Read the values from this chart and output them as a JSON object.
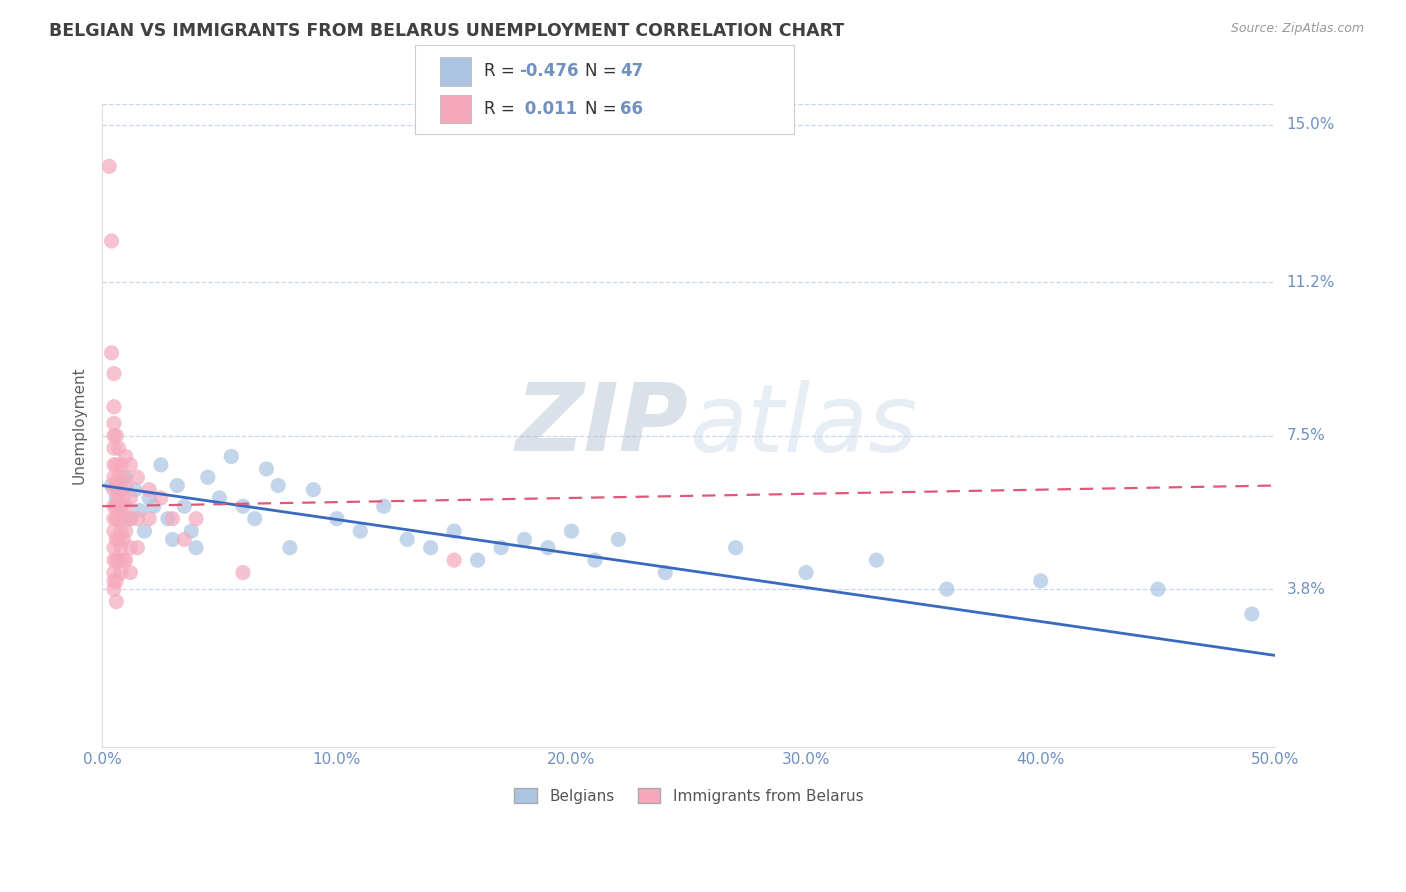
{
  "title": "BELGIAN VS IMMIGRANTS FROM BELARUS UNEMPLOYMENT CORRELATION CHART",
  "source": "Source: ZipAtlas.com",
  "ylabel": "Unemployment",
  "xlim": [
    0.0,
    0.5
  ],
  "ylim": [
    0.0,
    0.155
  ],
  "yticks": [
    0.038,
    0.075,
    0.112,
    0.15
  ],
  "ytick_labels": [
    "3.8%",
    "7.5%",
    "11.2%",
    "15.0%"
  ],
  "xticks": [
    0.0,
    0.1,
    0.2,
    0.3,
    0.4,
    0.5
  ],
  "xtick_labels": [
    "0.0%",
    "10.0%",
    "20.0%",
    "30.0%",
    "40.0%",
    "50.0%"
  ],
  "belgians_color": "#aac4e2",
  "belarus_color": "#f5a8bc",
  "trend_belgian_color": "#3a6abf",
  "trend_belarus_color": "#e05878",
  "R_belgian": -0.476,
  "N_belgian": 47,
  "R_belarus": 0.011,
  "N_belarus": 66,
  "watermark_zip": "ZIP",
  "watermark_atlas": "atlas",
  "title_color": "#404040",
  "axis_label_color": "#7090c0",
  "grid_color": "#c8d8ea",
  "belgians_scatter": [
    [
      0.004,
      0.063
    ],
    [
      0.006,
      0.06
    ],
    [
      0.008,
      0.058
    ],
    [
      0.01,
      0.065
    ],
    [
      0.012,
      0.055
    ],
    [
      0.014,
      0.062
    ],
    [
      0.016,
      0.057
    ],
    [
      0.018,
      0.052
    ],
    [
      0.02,
      0.06
    ],
    [
      0.022,
      0.058
    ],
    [
      0.025,
      0.068
    ],
    [
      0.028,
      0.055
    ],
    [
      0.03,
      0.05
    ],
    [
      0.032,
      0.063
    ],
    [
      0.035,
      0.058
    ],
    [
      0.038,
      0.052
    ],
    [
      0.04,
      0.048
    ],
    [
      0.045,
      0.065
    ],
    [
      0.05,
      0.06
    ],
    [
      0.055,
      0.07
    ],
    [
      0.06,
      0.058
    ],
    [
      0.065,
      0.055
    ],
    [
      0.07,
      0.067
    ],
    [
      0.075,
      0.063
    ],
    [
      0.08,
      0.048
    ],
    [
      0.09,
      0.062
    ],
    [
      0.1,
      0.055
    ],
    [
      0.11,
      0.052
    ],
    [
      0.12,
      0.058
    ],
    [
      0.13,
      0.05
    ],
    [
      0.14,
      0.048
    ],
    [
      0.15,
      0.052
    ],
    [
      0.16,
      0.045
    ],
    [
      0.17,
      0.048
    ],
    [
      0.18,
      0.05
    ],
    [
      0.19,
      0.048
    ],
    [
      0.2,
      0.052
    ],
    [
      0.21,
      0.045
    ],
    [
      0.22,
      0.05
    ],
    [
      0.24,
      0.042
    ],
    [
      0.27,
      0.048
    ],
    [
      0.3,
      0.042
    ],
    [
      0.33,
      0.045
    ],
    [
      0.36,
      0.038
    ],
    [
      0.4,
      0.04
    ],
    [
      0.45,
      0.038
    ],
    [
      0.49,
      0.032
    ]
  ],
  "belarus_scatter": [
    [
      0.003,
      0.14
    ],
    [
      0.004,
      0.122
    ],
    [
      0.004,
      0.095
    ],
    [
      0.005,
      0.09
    ],
    [
      0.005,
      0.082
    ],
    [
      0.005,
      0.078
    ],
    [
      0.005,
      0.075
    ],
    [
      0.005,
      0.072
    ],
    [
      0.005,
      0.068
    ],
    [
      0.005,
      0.065
    ],
    [
      0.005,
      0.062
    ],
    [
      0.005,
      0.058
    ],
    [
      0.005,
      0.055
    ],
    [
      0.005,
      0.052
    ],
    [
      0.005,
      0.048
    ],
    [
      0.005,
      0.045
    ],
    [
      0.005,
      0.042
    ],
    [
      0.005,
      0.04
    ],
    [
      0.005,
      0.038
    ],
    [
      0.006,
      0.075
    ],
    [
      0.006,
      0.068
    ],
    [
      0.006,
      0.063
    ],
    [
      0.006,
      0.058
    ],
    [
      0.006,
      0.055
    ],
    [
      0.006,
      0.05
    ],
    [
      0.006,
      0.045
    ],
    [
      0.006,
      0.04
    ],
    [
      0.006,
      0.035
    ],
    [
      0.007,
      0.072
    ],
    [
      0.007,
      0.065
    ],
    [
      0.007,
      0.06
    ],
    [
      0.007,
      0.055
    ],
    [
      0.007,
      0.05
    ],
    [
      0.007,
      0.045
    ],
    [
      0.008,
      0.068
    ],
    [
      0.008,
      0.062
    ],
    [
      0.008,
      0.058
    ],
    [
      0.008,
      0.052
    ],
    [
      0.008,
      0.048
    ],
    [
      0.008,
      0.042
    ],
    [
      0.009,
      0.065
    ],
    [
      0.009,
      0.06
    ],
    [
      0.009,
      0.055
    ],
    [
      0.009,
      0.05
    ],
    [
      0.009,
      0.045
    ],
    [
      0.01,
      0.07
    ],
    [
      0.01,
      0.063
    ],
    [
      0.01,
      0.058
    ],
    [
      0.01,
      0.052
    ],
    [
      0.01,
      0.045
    ],
    [
      0.012,
      0.068
    ],
    [
      0.012,
      0.06
    ],
    [
      0.012,
      0.055
    ],
    [
      0.012,
      0.048
    ],
    [
      0.012,
      0.042
    ],
    [
      0.015,
      0.065
    ],
    [
      0.015,
      0.055
    ],
    [
      0.015,
      0.048
    ],
    [
      0.02,
      0.062
    ],
    [
      0.02,
      0.055
    ],
    [
      0.025,
      0.06
    ],
    [
      0.03,
      0.055
    ],
    [
      0.035,
      0.05
    ],
    [
      0.04,
      0.055
    ],
    [
      0.06,
      0.042
    ],
    [
      0.15,
      0.045
    ]
  ],
  "bel_trend_x": [
    0.0,
    0.5
  ],
  "bel_trend_y": [
    0.063,
    0.022
  ],
  "byr_trend_x": [
    0.0,
    0.5
  ],
  "byr_trend_y": [
    0.058,
    0.063
  ]
}
